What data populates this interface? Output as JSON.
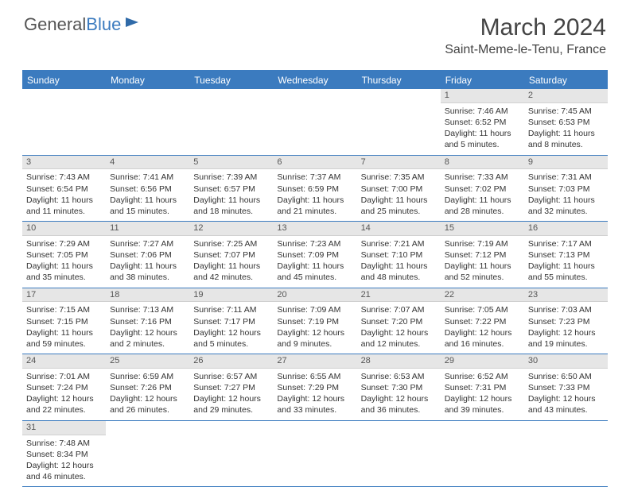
{
  "logo": {
    "general": "General",
    "blue": "Blue"
  },
  "title": "March 2024",
  "location": "Saint-Meme-le-Tenu, France",
  "day_headers": [
    "Sunday",
    "Monday",
    "Tuesday",
    "Wednesday",
    "Thursday",
    "Friday",
    "Saturday"
  ],
  "colors": {
    "header_bg": "#3b7bbf",
    "header_text": "#ffffff",
    "daynum_bg": "#e6e6e6",
    "row_border": "#3b7bbf",
    "text": "#333333"
  },
  "weeks": [
    [
      {
        "empty": true
      },
      {
        "empty": true
      },
      {
        "empty": true
      },
      {
        "empty": true
      },
      {
        "empty": true
      },
      {
        "n": "1",
        "sr": "Sunrise: 7:46 AM",
        "ss": "Sunset: 6:52 PM",
        "d1": "Daylight: 11 hours",
        "d2": "and 5 minutes."
      },
      {
        "n": "2",
        "sr": "Sunrise: 7:45 AM",
        "ss": "Sunset: 6:53 PM",
        "d1": "Daylight: 11 hours",
        "d2": "and 8 minutes."
      }
    ],
    [
      {
        "n": "3",
        "sr": "Sunrise: 7:43 AM",
        "ss": "Sunset: 6:54 PM",
        "d1": "Daylight: 11 hours",
        "d2": "and 11 minutes."
      },
      {
        "n": "4",
        "sr": "Sunrise: 7:41 AM",
        "ss": "Sunset: 6:56 PM",
        "d1": "Daylight: 11 hours",
        "d2": "and 15 minutes."
      },
      {
        "n": "5",
        "sr": "Sunrise: 7:39 AM",
        "ss": "Sunset: 6:57 PM",
        "d1": "Daylight: 11 hours",
        "d2": "and 18 minutes."
      },
      {
        "n": "6",
        "sr": "Sunrise: 7:37 AM",
        "ss": "Sunset: 6:59 PM",
        "d1": "Daylight: 11 hours",
        "d2": "and 21 minutes."
      },
      {
        "n": "7",
        "sr": "Sunrise: 7:35 AM",
        "ss": "Sunset: 7:00 PM",
        "d1": "Daylight: 11 hours",
        "d2": "and 25 minutes."
      },
      {
        "n": "8",
        "sr": "Sunrise: 7:33 AM",
        "ss": "Sunset: 7:02 PM",
        "d1": "Daylight: 11 hours",
        "d2": "and 28 minutes."
      },
      {
        "n": "9",
        "sr": "Sunrise: 7:31 AM",
        "ss": "Sunset: 7:03 PM",
        "d1": "Daylight: 11 hours",
        "d2": "and 32 minutes."
      }
    ],
    [
      {
        "n": "10",
        "sr": "Sunrise: 7:29 AM",
        "ss": "Sunset: 7:05 PM",
        "d1": "Daylight: 11 hours",
        "d2": "and 35 minutes."
      },
      {
        "n": "11",
        "sr": "Sunrise: 7:27 AM",
        "ss": "Sunset: 7:06 PM",
        "d1": "Daylight: 11 hours",
        "d2": "and 38 minutes."
      },
      {
        "n": "12",
        "sr": "Sunrise: 7:25 AM",
        "ss": "Sunset: 7:07 PM",
        "d1": "Daylight: 11 hours",
        "d2": "and 42 minutes."
      },
      {
        "n": "13",
        "sr": "Sunrise: 7:23 AM",
        "ss": "Sunset: 7:09 PM",
        "d1": "Daylight: 11 hours",
        "d2": "and 45 minutes."
      },
      {
        "n": "14",
        "sr": "Sunrise: 7:21 AM",
        "ss": "Sunset: 7:10 PM",
        "d1": "Daylight: 11 hours",
        "d2": "and 48 minutes."
      },
      {
        "n": "15",
        "sr": "Sunrise: 7:19 AM",
        "ss": "Sunset: 7:12 PM",
        "d1": "Daylight: 11 hours",
        "d2": "and 52 minutes."
      },
      {
        "n": "16",
        "sr": "Sunrise: 7:17 AM",
        "ss": "Sunset: 7:13 PM",
        "d1": "Daylight: 11 hours",
        "d2": "and 55 minutes."
      }
    ],
    [
      {
        "n": "17",
        "sr": "Sunrise: 7:15 AM",
        "ss": "Sunset: 7:15 PM",
        "d1": "Daylight: 11 hours",
        "d2": "and 59 minutes."
      },
      {
        "n": "18",
        "sr": "Sunrise: 7:13 AM",
        "ss": "Sunset: 7:16 PM",
        "d1": "Daylight: 12 hours",
        "d2": "and 2 minutes."
      },
      {
        "n": "19",
        "sr": "Sunrise: 7:11 AM",
        "ss": "Sunset: 7:17 PM",
        "d1": "Daylight: 12 hours",
        "d2": "and 5 minutes."
      },
      {
        "n": "20",
        "sr": "Sunrise: 7:09 AM",
        "ss": "Sunset: 7:19 PM",
        "d1": "Daylight: 12 hours",
        "d2": "and 9 minutes."
      },
      {
        "n": "21",
        "sr": "Sunrise: 7:07 AM",
        "ss": "Sunset: 7:20 PM",
        "d1": "Daylight: 12 hours",
        "d2": "and 12 minutes."
      },
      {
        "n": "22",
        "sr": "Sunrise: 7:05 AM",
        "ss": "Sunset: 7:22 PM",
        "d1": "Daylight: 12 hours",
        "d2": "and 16 minutes."
      },
      {
        "n": "23",
        "sr": "Sunrise: 7:03 AM",
        "ss": "Sunset: 7:23 PM",
        "d1": "Daylight: 12 hours",
        "d2": "and 19 minutes."
      }
    ],
    [
      {
        "n": "24",
        "sr": "Sunrise: 7:01 AM",
        "ss": "Sunset: 7:24 PM",
        "d1": "Daylight: 12 hours",
        "d2": "and 22 minutes."
      },
      {
        "n": "25",
        "sr": "Sunrise: 6:59 AM",
        "ss": "Sunset: 7:26 PM",
        "d1": "Daylight: 12 hours",
        "d2": "and 26 minutes."
      },
      {
        "n": "26",
        "sr": "Sunrise: 6:57 AM",
        "ss": "Sunset: 7:27 PM",
        "d1": "Daylight: 12 hours",
        "d2": "and 29 minutes."
      },
      {
        "n": "27",
        "sr": "Sunrise: 6:55 AM",
        "ss": "Sunset: 7:29 PM",
        "d1": "Daylight: 12 hours",
        "d2": "and 33 minutes."
      },
      {
        "n": "28",
        "sr": "Sunrise: 6:53 AM",
        "ss": "Sunset: 7:30 PM",
        "d1": "Daylight: 12 hours",
        "d2": "and 36 minutes."
      },
      {
        "n": "29",
        "sr": "Sunrise: 6:52 AM",
        "ss": "Sunset: 7:31 PM",
        "d1": "Daylight: 12 hours",
        "d2": "and 39 minutes."
      },
      {
        "n": "30",
        "sr": "Sunrise: 6:50 AM",
        "ss": "Sunset: 7:33 PM",
        "d1": "Daylight: 12 hours",
        "d2": "and 43 minutes."
      }
    ],
    [
      {
        "n": "31",
        "sr": "Sunrise: 7:48 AM",
        "ss": "Sunset: 8:34 PM",
        "d1": "Daylight: 12 hours",
        "d2": "and 46 minutes."
      },
      {
        "empty": true
      },
      {
        "empty": true
      },
      {
        "empty": true
      },
      {
        "empty": true
      },
      {
        "empty": true
      },
      {
        "empty": true
      }
    ]
  ]
}
